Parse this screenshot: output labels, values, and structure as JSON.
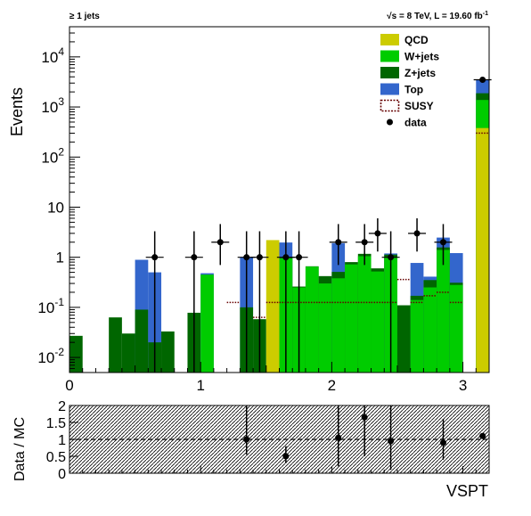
{
  "header": {
    "left": "≥ 1 jets",
    "right_prefix": "√s = 8 TeV, L = 19.60 fb",
    "right_exp": "-1"
  },
  "colors": {
    "qcd": "#cccc00",
    "wjets": "#00cc00",
    "zjets": "#006600",
    "top": "#3366cc",
    "susy": "#660000",
    "data": "#000000",
    "ratio_hatch": "#000000"
  },
  "chart_data": [
    {
      "type": "bar",
      "stacked": true,
      "log_y": true,
      "xlabel": "",
      "ylabel": "Events",
      "xlim": [
        0,
        3.2
      ],
      "ylim": [
        0.005,
        40000
      ],
      "x_ticks": [
        "0",
        "1",
        "2",
        "3"
      ],
      "y_ticks": [
        "10^{-2}",
        "10^{-1}",
        "1",
        "10",
        "10^{2}",
        "10^{3}",
        "10^{4}"
      ],
      "bin_width": 0.1,
      "bins": [
        {
          "x0": 0.0,
          "qcd": 0,
          "wjets": 0,
          "zjets": 0.027,
          "top": 0,
          "susy": 0
        },
        {
          "x0": 0.3,
          "qcd": 0,
          "wjets": 0,
          "zjets": 0.063,
          "top": 0,
          "susy": 0
        },
        {
          "x0": 0.4,
          "qcd": 0,
          "wjets": 0,
          "zjets": 0.03,
          "top": 0,
          "susy": 0
        },
        {
          "x0": 0.5,
          "qcd": 0,
          "wjets": 0,
          "zjets": 0.09,
          "top": 0.8,
          "susy": 0
        },
        {
          "x0": 0.6,
          "qcd": 0,
          "wjets": 0,
          "zjets": 0.02,
          "top": 0.48,
          "susy": 0
        },
        {
          "x0": 0.7,
          "qcd": 0,
          "wjets": 0,
          "zjets": 0.033,
          "top": 0,
          "susy": 0
        },
        {
          "x0": 0.9,
          "qcd": 0,
          "wjets": 0,
          "zjets": 0.078,
          "top": 0,
          "susy": 0
        },
        {
          "x0": 1.0,
          "qcd": 0,
          "wjets": 0.45,
          "zjets": 0,
          "top": 0.03,
          "susy": 0
        },
        {
          "x0": 1.2,
          "qcd": 0,
          "wjets": 0,
          "zjets": 0,
          "top": 0,
          "susy": 0.125
        },
        {
          "x0": 1.3,
          "qcd": 0,
          "wjets": 0,
          "zjets": 0.1,
          "top": 0.9,
          "susy": 0
        },
        {
          "x0": 1.4,
          "qcd": 0,
          "wjets": 0,
          "zjets": 0.058,
          "top": 0,
          "susy": 0.063
        },
        {
          "x0": 1.5,
          "qcd": 2.2,
          "wjets": 0,
          "zjets": 0,
          "top": 0,
          "susy": 0.125
        },
        {
          "x0": 1.6,
          "qcd": 0,
          "wjets": 0.95,
          "zjets": 0.02,
          "top": 1.0,
          "susy": 0.125
        },
        {
          "x0": 1.7,
          "qcd": 0,
          "wjets": 0.25,
          "zjets": 0.01,
          "top": 0,
          "susy": 0.125
        },
        {
          "x0": 1.8,
          "qcd": 0,
          "wjets": 0.65,
          "zjets": 0.01,
          "top": 0,
          "susy": 0.125
        },
        {
          "x0": 1.9,
          "qcd": 0,
          "wjets": 0.3,
          "zjets": 0.12,
          "top": 0,
          "susy": 0.125
        },
        {
          "x0": 2.0,
          "qcd": 0,
          "wjets": 0.38,
          "zjets": 0.13,
          "top": 1.4,
          "susy": 0.125
        },
        {
          "x0": 2.1,
          "qcd": 0,
          "wjets": 0.72,
          "zjets": 0.08,
          "top": 0,
          "susy": 0.125
        },
        {
          "x0": 2.2,
          "qcd": 0,
          "wjets": 1.05,
          "zjets": 0.12,
          "top": 0,
          "susy": 0.125
        },
        {
          "x0": 2.3,
          "qcd": 0,
          "wjets": 0.52,
          "zjets": 0.08,
          "top": 0,
          "susy": 0.125
        },
        {
          "x0": 2.4,
          "qcd": 0,
          "wjets": 1.0,
          "zjets": 0.13,
          "top": 0.06,
          "susy": 0.125
        },
        {
          "x0": 2.5,
          "qcd": 0,
          "wjets": 0,
          "zjets": 0.11,
          "top": 0,
          "susy": 0.36
        },
        {
          "x0": 2.6,
          "qcd": 0,
          "wjets": 0.14,
          "zjets": 0.03,
          "top": 0.6,
          "susy": 0.125
        },
        {
          "x0": 2.7,
          "qcd": 0,
          "wjets": 0.25,
          "zjets": 0.1,
          "top": 0.06,
          "susy": 0.17
        },
        {
          "x0": 2.8,
          "qcd": 0,
          "wjets": 1.4,
          "zjets": 0.17,
          "top": 0.9,
          "susy": 0.2
        },
        {
          "x0": 2.9,
          "qcd": 0,
          "wjets": 0.28,
          "zjets": 0.03,
          "top": 0.9,
          "susy": 0.125
        },
        {
          "x0": 3.1,
          "qcd": 380,
          "wjets": 1000,
          "zjets": 500,
          "top": 1600,
          "susy": 300
        }
      ],
      "data_points": [
        {
          "x": 0.65,
          "y": 1.0,
          "lo": 0.005,
          "hi": 3.3
        },
        {
          "x": 0.95,
          "y": 1.0,
          "lo": 0.005,
          "hi": 3.3
        },
        {
          "x": 1.15,
          "y": 2.0,
          "lo": 0.7,
          "hi": 4.6
        },
        {
          "x": 1.35,
          "y": 1.0,
          "lo": 0.005,
          "hi": 3.3
        },
        {
          "x": 1.45,
          "y": 1.0,
          "lo": 0.005,
          "hi": 3.3
        },
        {
          "x": 1.65,
          "y": 1.0,
          "lo": 0.005,
          "hi": 3.3
        },
        {
          "x": 1.75,
          "y": 1.0,
          "lo": 0.005,
          "hi": 3.3
        },
        {
          "x": 2.05,
          "y": 2.0,
          "lo": 0.7,
          "hi": 4.6
        },
        {
          "x": 2.25,
          "y": 2.0,
          "lo": 0.7,
          "hi": 4.6
        },
        {
          "x": 2.35,
          "y": 3.0,
          "lo": 1.3,
          "hi": 6.0
        },
        {
          "x": 2.45,
          "y": 1.0,
          "lo": 0.005,
          "hi": 3.3
        },
        {
          "x": 2.65,
          "y": 3.0,
          "lo": 1.3,
          "hi": 6.0
        },
        {
          "x": 2.85,
          "y": 2.0,
          "lo": 0.7,
          "hi": 4.6
        },
        {
          "x": 3.15,
          "y": 3500,
          "lo": 3300,
          "hi": 3700
        }
      ],
      "legend_position": "top-right",
      "legend": [
        {
          "label": "QCD",
          "kind": "fill",
          "key": "qcd"
        },
        {
          "label": "W+jets",
          "kind": "fill",
          "key": "wjets"
        },
        {
          "label": "Z+jets",
          "kind": "fill",
          "key": "zjets"
        },
        {
          "label": "Top",
          "kind": "fill",
          "key": "top"
        },
        {
          "label": "SUSY",
          "kind": "dotted-box",
          "key": "susy"
        },
        {
          "label": "data",
          "kind": "marker",
          "key": "data"
        }
      ]
    },
    {
      "type": "scatter",
      "xlabel": "VSPT",
      "ylabel": "Data / MC",
      "xlim": [
        0,
        3.2
      ],
      "ylim": [
        0,
        2
      ],
      "y_ticks": [
        "0",
        "0.5",
        "1",
        "1.5",
        "2"
      ],
      "reference_line": 1,
      "points": [
        {
          "x": 1.35,
          "y": 1.0,
          "lo": 0.55,
          "hi": 2.0
        },
        {
          "x": 1.65,
          "y": 0.5,
          "lo": 0.3,
          "hi": 0.8
        },
        {
          "x": 2.05,
          "y": 1.05,
          "lo": 0.2,
          "hi": 2.0
        },
        {
          "x": 2.25,
          "y": 1.65,
          "lo": 0.5,
          "hi": 2.0
        },
        {
          "x": 2.45,
          "y": 0.95,
          "lo": 0.1,
          "hi": 2.0
        },
        {
          "x": 2.85,
          "y": 0.9,
          "lo": 0.4,
          "hi": 1.6
        },
        {
          "x": 3.15,
          "y": 1.1,
          "lo": 1.05,
          "hi": 1.15
        }
      ]
    }
  ]
}
